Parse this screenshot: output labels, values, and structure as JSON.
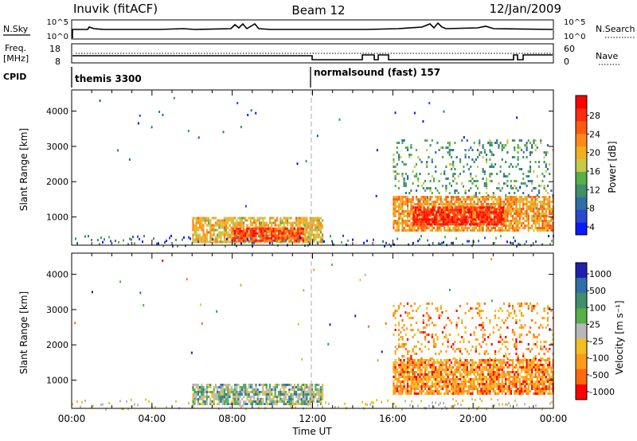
{
  "header": {
    "station": "Inuvik (fitACF)",
    "beam": "Beam 12",
    "date": "12/Jan/2009"
  },
  "summary_panels": {
    "nsky_label": "N.Sky",
    "nsky_ticks": [
      "10^5",
      "10^0"
    ],
    "nsearch_label": "N.Search",
    "nsearch_ticks": [
      "10^5",
      "10^0"
    ],
    "freq_label": "Freq.",
    "freq_unit": "[MHz]",
    "freq_ticks": [
      "18",
      "8"
    ],
    "nave_label": "Nave",
    "nave_ticks": [
      "60",
      "0"
    ],
    "cpid_label": "CPID",
    "cpid_segments": [
      {
        "name": "themis 3300",
        "start_hour": 0
      },
      {
        "name": "normalsound (fast) 157",
        "start_hour": 12
      }
    ]
  },
  "colors": {
    "power_scale": [
      "#0a1aff",
      "#2848d0",
      "#2e6fa8",
      "#3f8f6a",
      "#55b04a",
      "#c8c84a",
      "#f0b020",
      "#ff8a1a",
      "#ff5a10",
      "#ff2a10",
      "#ff0000"
    ],
    "velocity_scale": [
      "#2020b0",
      "#2e6fa8",
      "#3f8f6a",
      "#55b04a",
      "#b8b8b8",
      "#f0c020",
      "#ff9a1a",
      "#ff6a10",
      "#ff0000"
    ]
  },
  "chart_data": [
    {
      "type": "heatmap",
      "name": "power",
      "title": "",
      "xlabel": "",
      "ylabel": "Slant Range [km]",
      "x_ticks": [
        "00:00",
        "04:00",
        "08:00",
        "12:00",
        "16:00",
        "20:00",
        "00:00"
      ],
      "xlim_hours": [
        0,
        24
      ],
      "y_ticks": [
        1000,
        2000,
        3000,
        4000
      ],
      "ylim": [
        200,
        4600
      ],
      "colorbar_label": "Power [dB]",
      "colorbar_ticks": [
        "28",
        "24",
        "20",
        "16",
        "12",
        "8",
        "4"
      ],
      "colorbar_range": [
        0,
        30
      ],
      "regions": [
        {
          "t_start": 6.0,
          "t_end": 12.5,
          "r_min": 300,
          "r_max": 1000,
          "level": 18
        },
        {
          "t_start": 8.0,
          "t_end": 11.5,
          "r_min": 350,
          "r_max": 700,
          "level": 26
        },
        {
          "t_start": 16.0,
          "t_end": 24.0,
          "r_min": 600,
          "r_max": 1600,
          "level": 20
        },
        {
          "t_start": 17.0,
          "t_end": 21.5,
          "r_min": 800,
          "r_max": 1300,
          "level": 28
        },
        {
          "t_start": 16.0,
          "t_end": 24.0,
          "r_min": 1600,
          "r_max": 3200,
          "level": 10
        }
      ]
    },
    {
      "type": "heatmap",
      "name": "velocity",
      "title": "",
      "xlabel": "Time UT",
      "ylabel": "Slant Range [km]",
      "x_ticks": [
        "00:00",
        "04:00",
        "08:00",
        "12:00",
        "16:00",
        "20:00",
        "00:00"
      ],
      "xlim_hours": [
        0,
        24
      ],
      "y_ticks": [
        1000,
        2000,
        3000,
        4000
      ],
      "ylim": [
        200,
        4600
      ],
      "colorbar_label": "Velocity [m s⁻¹]",
      "colorbar_ticks": [
        "1000",
        "500",
        "100",
        "25",
        "-25",
        "-100",
        "-500",
        "-1000"
      ],
      "regions": [
        {
          "t_start": 6.0,
          "t_end": 12.5,
          "r_min": 350,
          "r_max": 900,
          "level": "mixed-green-gray"
        },
        {
          "t_start": 16.0,
          "t_end": 24.0,
          "r_min": 600,
          "r_max": 1600,
          "level": "orange"
        },
        {
          "t_start": 16.0,
          "t_end": 24.0,
          "r_min": 1600,
          "r_max": 3200,
          "level": "orange-sparse"
        }
      ]
    }
  ]
}
